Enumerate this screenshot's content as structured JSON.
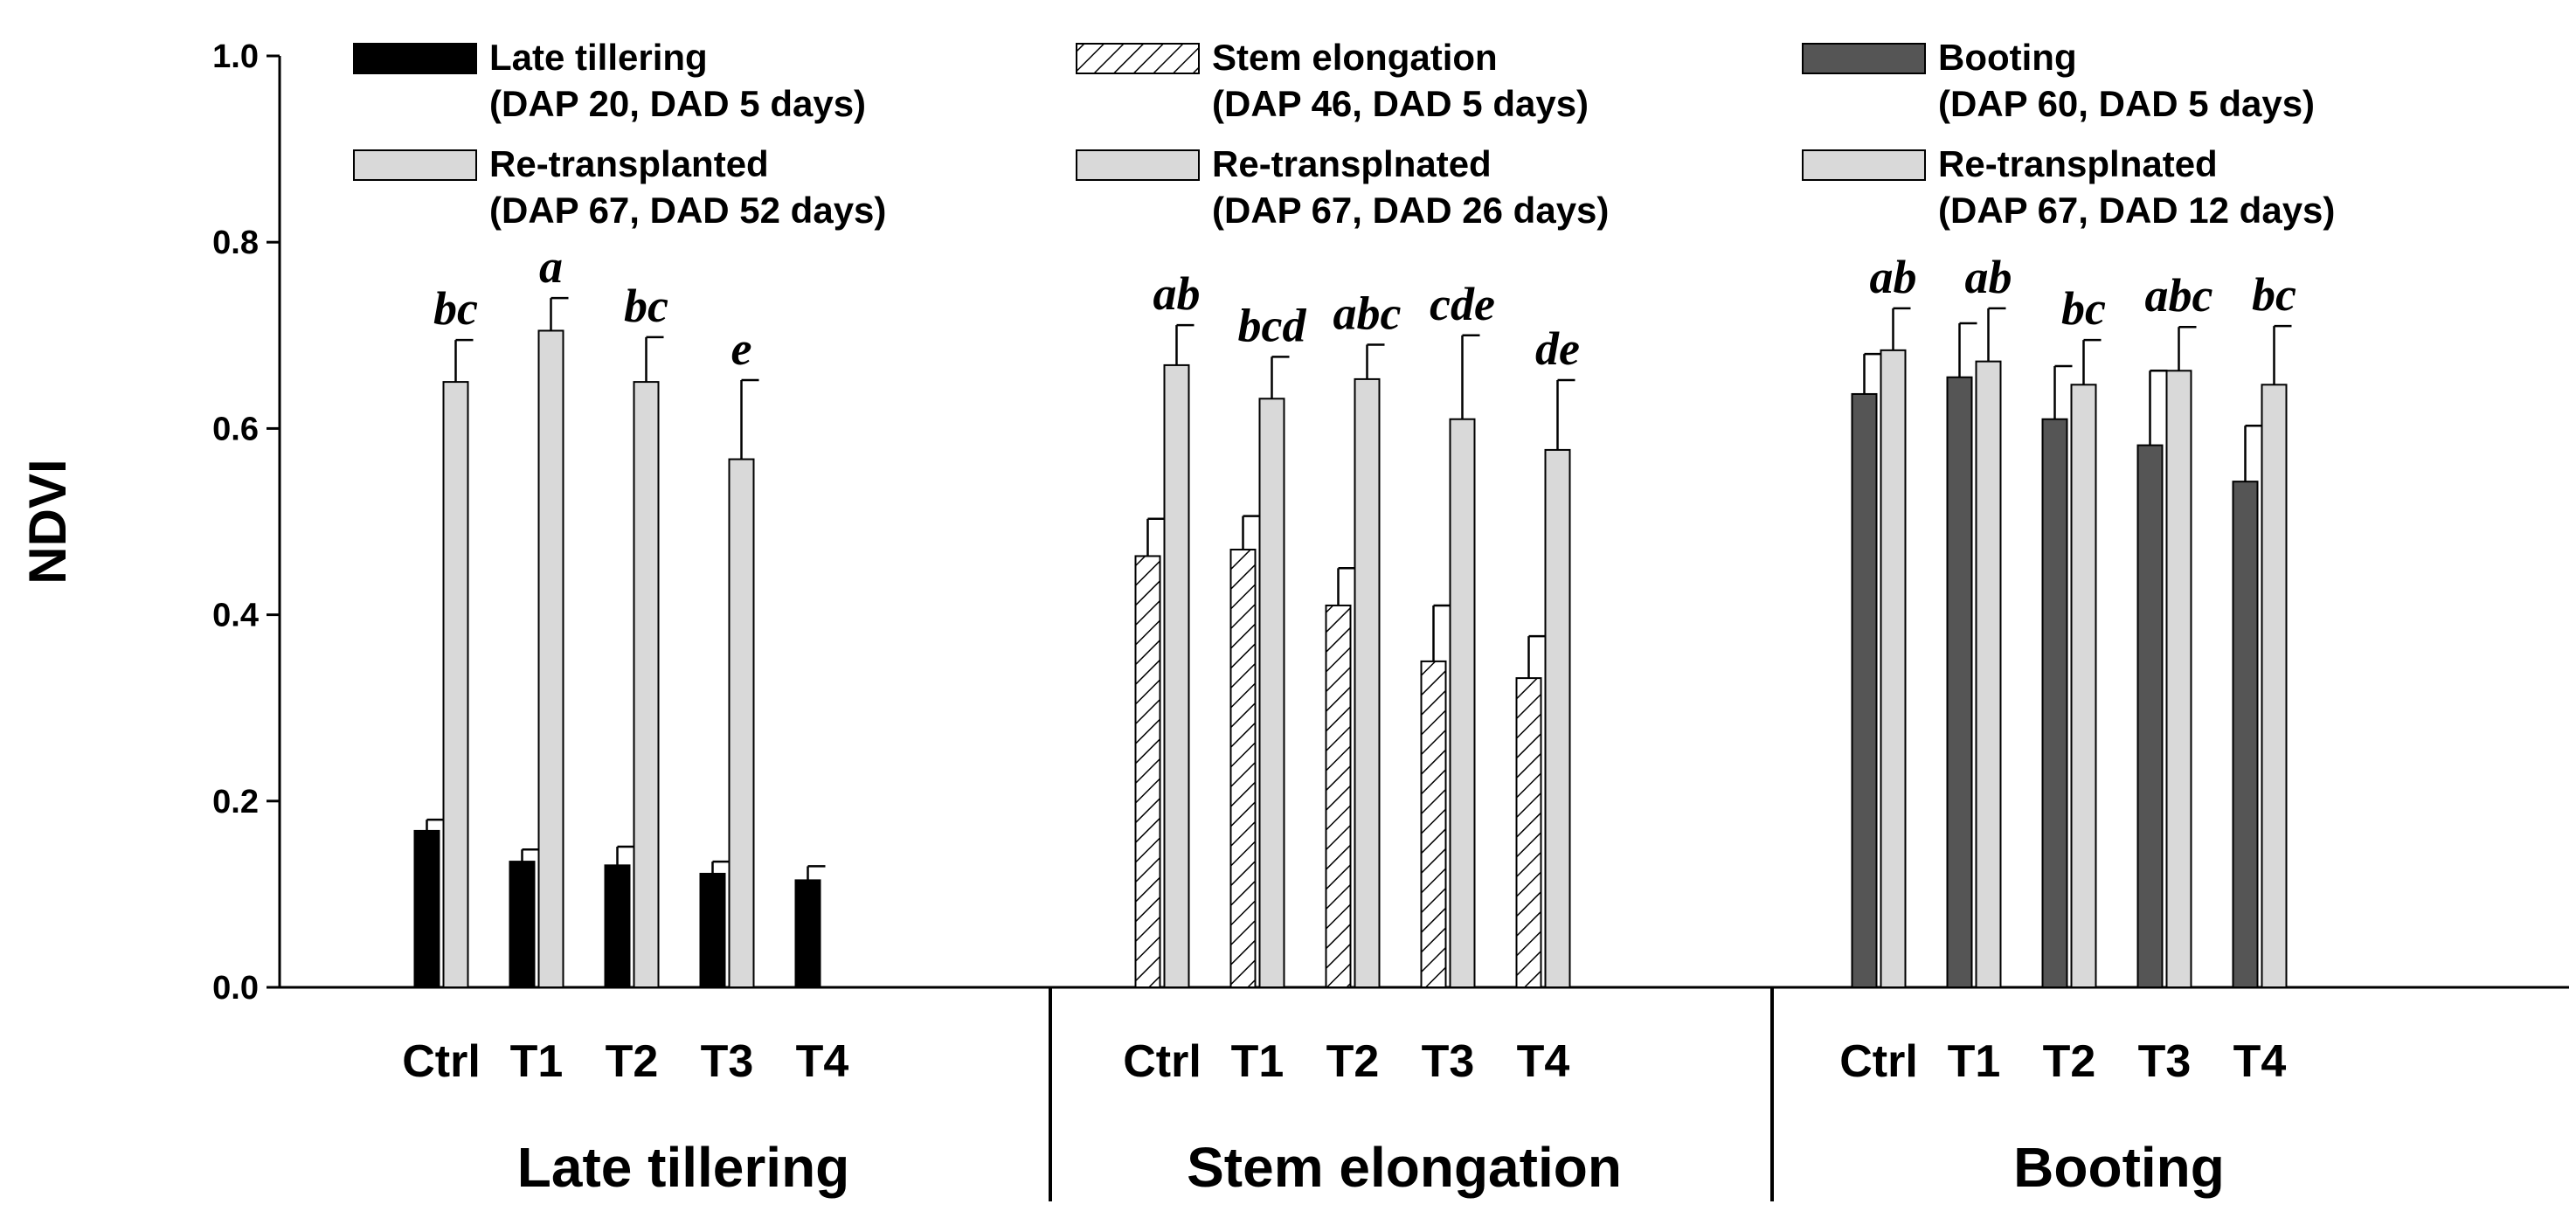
{
  "chart_data": {
    "type": "bar",
    "ylabel": "NDVI",
    "ylim": [
      0,
      1.0
    ],
    "yticks": [
      "0.0",
      "0.2",
      "0.4",
      "0.6",
      "0.8",
      "1.0"
    ],
    "categories": [
      "Ctrl",
      "T1",
      "T2",
      "T3",
      "T4"
    ],
    "groups": [
      {
        "name": "Late tillering",
        "stage": {
          "legend_line1": "Late tillering",
          "legend_line2": "(DAP 20, DAD 5 days)",
          "fill": "#000000",
          "values": [
            0.168,
            0.135,
            0.131,
            0.122,
            0.115
          ],
          "errors": [
            0.012,
            0.013,
            0.02,
            0.013,
            0.015
          ]
        },
        "retrans": {
          "legend_line1": "Re-transplanted",
          "legend_line2": "(DAP 67, DAD 52 days)",
          "fill": "#d9d9d9",
          "values": [
            0.65,
            0.705,
            0.65,
            0.567,
            null
          ],
          "errors": [
            0.045,
            0.035,
            0.048,
            0.085,
            null
          ]
        },
        "letters": [
          "bc",
          "a",
          "bc",
          "e",
          ""
        ]
      },
      {
        "name": "Stem elongation",
        "stage": {
          "legend_line1": "Stem elongation",
          "legend_line2": "(DAP 46, DAD 5 days)",
          "fill": "hatch",
          "values": [
            0.463,
            0.47,
            0.41,
            0.35,
            0.332
          ],
          "errors": [
            0.04,
            0.036,
            0.04,
            0.06,
            0.045
          ]
        },
        "retrans": {
          "legend_line1": "Re-transplnated",
          "legend_line2": "(DAP 67, DAD 26 days)",
          "fill": "#d9d9d9",
          "values": [
            0.668,
            0.632,
            0.653,
            0.61,
            0.577
          ],
          "errors": [
            0.043,
            0.045,
            0.037,
            0.09,
            0.075
          ]
        },
        "letters": [
          "ab",
          "bcd",
          "abc",
          "cde",
          "de"
        ]
      },
      {
        "name": "Booting",
        "stage": {
          "legend_line1": "Booting",
          "legend_line2": "(DAP 60, DAD 5 days)",
          "fill": "#555555",
          "values": [
            0.637,
            0.655,
            0.61,
            0.582,
            0.543
          ],
          "errors": [
            0.043,
            0.058,
            0.057,
            0.08,
            0.06
          ]
        },
        "retrans": {
          "legend_line1": "Re-transplnated",
          "legend_line2": "(DAP 67, DAD 12 days)",
          "fill": "#d9d9d9",
          "values": [
            0.684,
            0.672,
            0.647,
            0.662,
            0.647
          ],
          "errors": [
            0.045,
            0.057,
            0.048,
            0.047,
            0.063
          ]
        },
        "letters": [
          "ab",
          "ab",
          "bc",
          "abc",
          "bc"
        ]
      }
    ]
  }
}
